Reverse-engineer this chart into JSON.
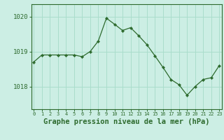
{
  "x": [
    0,
    1,
    2,
    3,
    4,
    5,
    6,
    7,
    8,
    9,
    10,
    11,
    12,
    13,
    14,
    15,
    16,
    17,
    18,
    19,
    20,
    21,
    22,
    23
  ],
  "y": [
    1018.7,
    1018.9,
    1018.9,
    1018.9,
    1018.9,
    1018.9,
    1018.85,
    1019.0,
    1019.3,
    1019.95,
    1019.78,
    1019.6,
    1019.68,
    1019.45,
    1019.2,
    1018.88,
    1018.55,
    1018.2,
    1018.05,
    1017.75,
    1018.0,
    1018.2,
    1018.25,
    1018.6
  ],
  "line_color": "#2d6a2d",
  "marker": "D",
  "marker_size": 2.2,
  "bg_color": "#cceee4",
  "grid_color": "#aaddcc",
  "axis_color": "#2d6a2d",
  "xlabel": "Graphe pression niveau de la mer (hPa)",
  "xlabel_fontsize": 7.5,
  "yticks": [
    1018,
    1019,
    1020
  ],
  "xtick_labels": [
    "0",
    "1",
    "2",
    "3",
    "4",
    "5",
    "6",
    "7",
    "8",
    "9",
    "10",
    "11",
    "12",
    "13",
    "14",
    "15",
    "16",
    "17",
    "18",
    "19",
    "20",
    "21",
    "22",
    "23"
  ],
  "ylim": [
    1017.35,
    1020.35
  ],
  "xlim": [
    -0.3,
    23.3
  ]
}
